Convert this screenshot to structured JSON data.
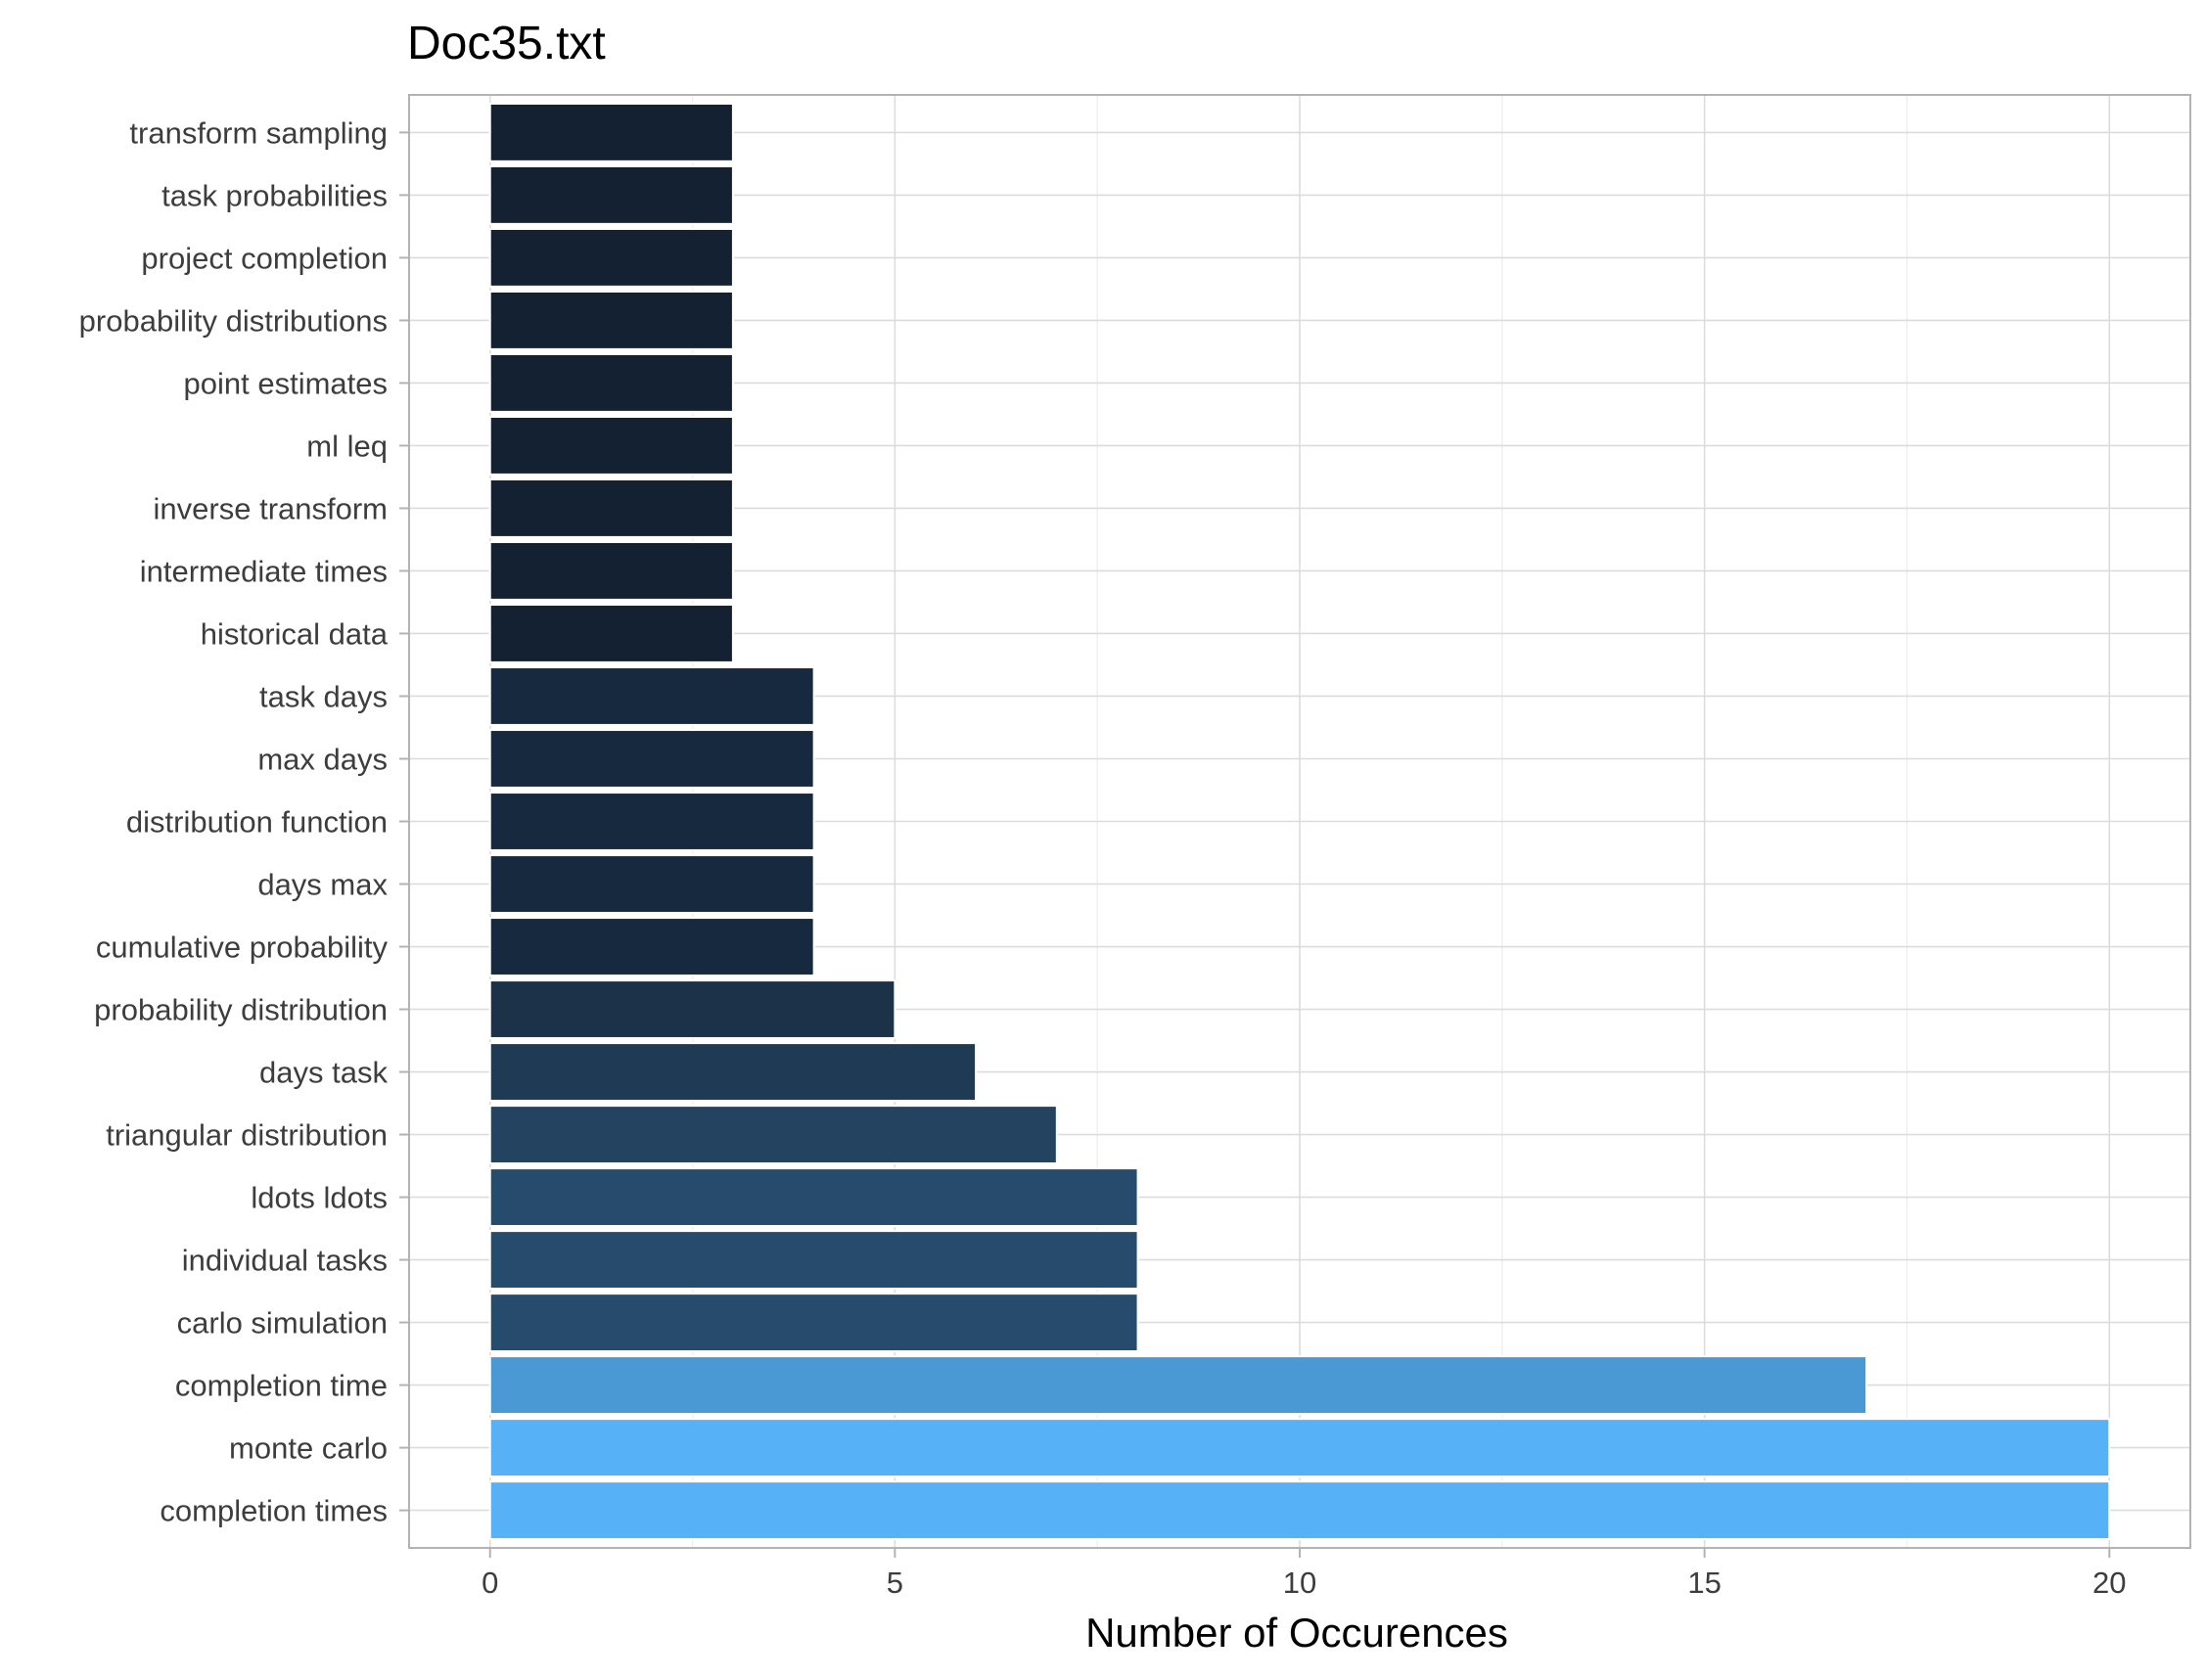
{
  "chart_data": {
    "type": "bar",
    "orientation": "horizontal",
    "title": "Doc35.txt",
    "xlabel": "Number of Occurences",
    "ylabel": "",
    "xlim": [
      -1,
      21
    ],
    "x_ticks": [
      0,
      5,
      10,
      15,
      20
    ],
    "grid": true,
    "legend": "none",
    "color_scale": {
      "low": "#132132",
      "high": "#56b1f7"
    },
    "categories": [
      "completion times",
      "monte carlo",
      "completion time",
      "carlo simulation",
      "individual tasks",
      "ldots ldots",
      "triangular distribution",
      "days task",
      "probability distribution",
      "cumulative probability",
      "days max",
      "distribution function",
      "max days",
      "task days",
      "historical data",
      "intermediate times",
      "inverse transform",
      "ml leq",
      "point estimates",
      "probability distributions",
      "project completion",
      "task probabilities",
      "transform sampling"
    ],
    "values": [
      20,
      20,
      17,
      8,
      8,
      8,
      7,
      6,
      5,
      4,
      4,
      4,
      4,
      4,
      3,
      3,
      3,
      3,
      3,
      3,
      3,
      3,
      3
    ]
  }
}
